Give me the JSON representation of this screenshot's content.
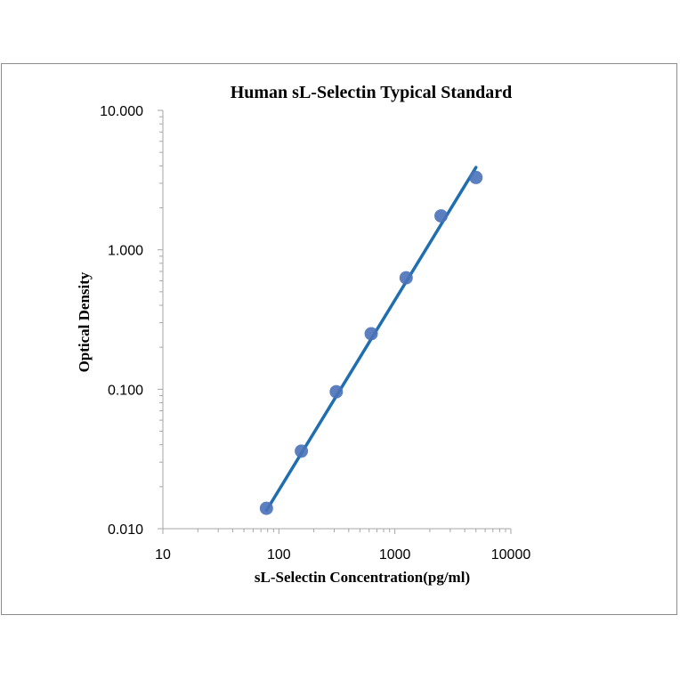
{
  "chart_data": {
    "type": "scatter",
    "title": "Human sL-Selectin Typical Standard",
    "xlabel": "sL-Selectin Concentration(pg/ml)",
    "ylabel": "Optical Density",
    "xscale": "log",
    "yscale": "log",
    "xlim": [
      10,
      10000
    ],
    "ylim": [
      0.01,
      10
    ],
    "x_tick_labels": [
      "10",
      "100",
      "1000",
      "10000"
    ],
    "x_ticks": [
      10,
      100,
      1000,
      10000
    ],
    "y_tick_labels": [
      "0.010",
      "0.100",
      "1.000",
      "10.000"
    ],
    "y_ticks": [
      0.01,
      0.1,
      1,
      10
    ],
    "grid": false,
    "legend": "none",
    "series": [
      {
        "points": [
          {
            "x": 78.1,
            "y": 0.014
          },
          {
            "x": 156.25,
            "y": 0.036
          },
          {
            "x": 312.5,
            "y": 0.096
          },
          {
            "x": 625,
            "y": 0.25
          },
          {
            "x": 1250,
            "y": 0.63
          },
          {
            "x": 2500,
            "y": 1.75
          },
          {
            "x": 5000,
            "y": 3.3
          }
        ],
        "marker_color": "#4a72b8",
        "trendline": {
          "type": "power",
          "from": {
            "x": 78.1,
            "y": 0.0135
          },
          "to": {
            "x": 5000,
            "y": 3.9
          },
          "color": "#1f6fb0"
        }
      }
    ]
  }
}
